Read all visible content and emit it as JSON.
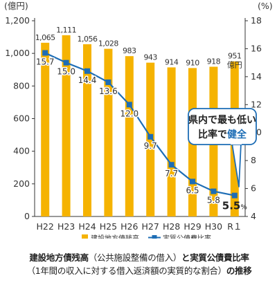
{
  "chart_data": {
    "type": "bar+line",
    "categories": [
      "H22",
      "H23",
      "H24",
      "H25",
      "H26",
      "H27",
      "H28",
      "H29",
      "H30",
      "R１"
    ],
    "y_left": {
      "unit": "(億円)",
      "ylim": [
        0,
        1200
      ],
      "ticks": [
        "0",
        "200",
        "400",
        "600",
        "800",
        "1,000",
        "1,200"
      ]
    },
    "y_right": {
      "unit": "(%)",
      "ylim": [
        4,
        18
      ],
      "ticks": [
        "4",
        "6",
        "8",
        "10",
        "12",
        "14",
        "16",
        "18"
      ]
    },
    "series": [
      {
        "name": "建設地方債残高",
        "kind": "bar",
        "axis": "left",
        "color": "#f5b301",
        "values": [
          1065,
          1111,
          1056,
          1028,
          983,
          943,
          914,
          910,
          918,
          951
        ],
        "labels": [
          "1,065",
          "1,111",
          "1,056",
          "1,028",
          "983",
          "943",
          "914",
          "910",
          "918",
          "951"
        ],
        "last_label_suffix": "億円"
      },
      {
        "name": "実質公債費比率",
        "kind": "line",
        "axis": "right",
        "color": "#1d6db5",
        "values": [
          15.7,
          15.0,
          14.4,
          13.6,
          12.0,
          9.7,
          7.7,
          6.5,
          5.8,
          5.5
        ],
        "labels": [
          "15.7",
          "15.0",
          "14.4",
          "13.6",
          "12.0",
          "9.7",
          "7.7",
          "6.5",
          "5.8",
          "5.5"
        ],
        "last_label_suffix": "%"
      }
    ],
    "grid": false,
    "legend": "bottom",
    "callout": {
      "line1": "県内で最も低い",
      "line2_prefix": "比率で",
      "line2_highlight": "健全",
      "highlight_color": "#1d6db5"
    }
  },
  "caption": {
    "line1_bold_a": "建設地方債残高",
    "line1_normal": "（公共施設整備の借入）",
    "line1_bold_b": "と実質公債費比率",
    "line2_normal": "（1年間の収入に対する借入返済額の実質的な割合）",
    "line2_bold": "の推移"
  }
}
